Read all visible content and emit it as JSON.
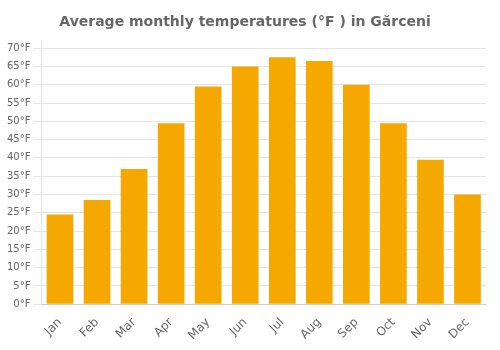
{
  "chart_data": {
    "type": "bar",
    "title": "Average monthly temperatures (°F ) in Gărceni",
    "categories": [
      "Jan",
      "Feb",
      "Mar",
      "Apr",
      "May",
      "Jun",
      "Jul",
      "Aug",
      "Sep",
      "Oct",
      "Nov",
      "Dec"
    ],
    "values": [
      24.5,
      28.5,
      37.0,
      49.5,
      59.5,
      65.0,
      67.5,
      66.5,
      60.0,
      49.5,
      39.5,
      30.0
    ],
    "color": "#F5A800",
    "ylim": [
      0,
      72
    ],
    "yticks": [
      {
        "value": 0,
        "label": "0°F"
      },
      {
        "value": 5,
        "label": "5°F"
      },
      {
        "value": 10,
        "label": "10°F"
      },
      {
        "value": 15,
        "label": "15°F"
      },
      {
        "value": 20,
        "label": "20°F"
      },
      {
        "value": 25,
        "label": "25°F"
      },
      {
        "value": 30,
        "label": "30°F"
      },
      {
        "value": 35,
        "label": "35°F"
      },
      {
        "value": 40,
        "label": "40°F"
      },
      {
        "value": 45,
        "label": "45°F"
      },
      {
        "value": 50,
        "label": "50°F"
      },
      {
        "value": 55,
        "label": "55°F"
      },
      {
        "value": 60,
        "label": "60°F"
      },
      {
        "value": 65,
        "label": "65°F"
      },
      {
        "value": 70,
        "label": "70°F"
      }
    ],
    "grid": true
  }
}
